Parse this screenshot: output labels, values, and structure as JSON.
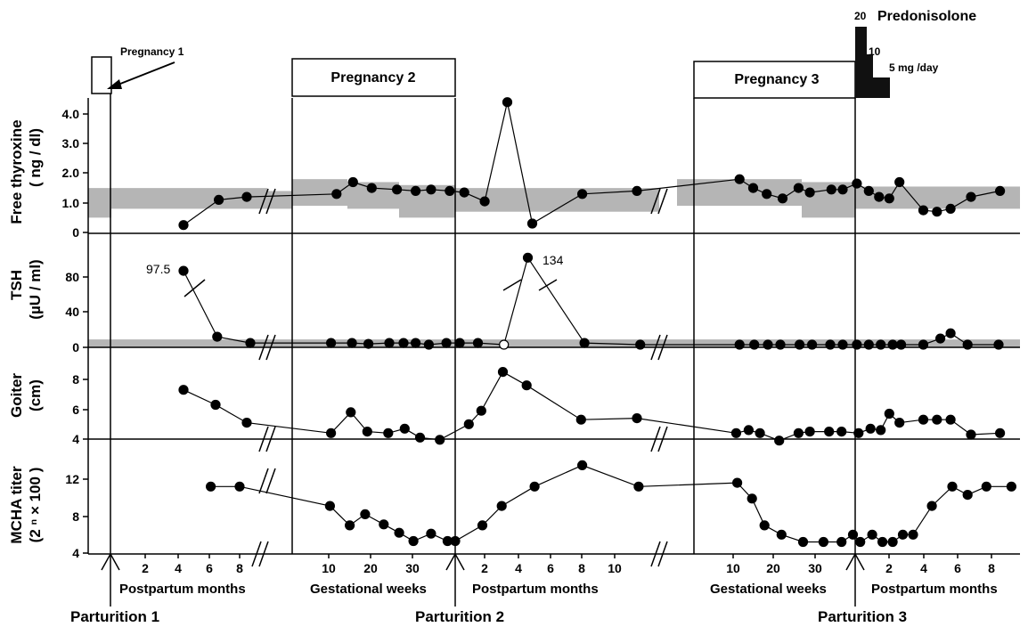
{
  "chart_data": {
    "type": "line",
    "x_axis_sections": [
      {
        "label": "Postpartum months",
        "ticks": [
          "2",
          "4",
          "6",
          "8"
        ]
      },
      {
        "label": "Gestational weeks",
        "ticks": [
          "10",
          "20",
          "30"
        ]
      },
      {
        "label": "Postpartum months",
        "ticks": [
          "2",
          "4",
          "6",
          "8",
          "10"
        ]
      },
      {
        "label": "Gestational weeks",
        "ticks": [
          "10",
          "20",
          "30"
        ]
      },
      {
        "label": "Postpartum months",
        "ticks": [
          "2",
          "4",
          "6",
          "8"
        ]
      }
    ],
    "events": [
      "Parturition 1",
      "Parturition 2",
      "Parturition 3"
    ],
    "pregnancies": [
      "Pregnancy 1",
      "Pregnancy 2",
      "Pregnancy 3"
    ],
    "treatment": {
      "name": "Predonisolone",
      "doses": [
        "20",
        "10",
        "5 mg /day"
      ]
    },
    "panels": [
      {
        "ylabel": [
          "Free thyroxine",
          "( ng / dl)"
        ],
        "ticks": [
          "0",
          "1.0",
          "2.0",
          "3.0",
          "4.0"
        ],
        "ylim": [
          0,
          4.2
        ],
        "normal_range": true,
        "points": [
          [
            4.5,
            0.25
          ],
          [
            6.7,
            1.1
          ],
          [
            8.2,
            1.2
          ],
          [
            13.2,
            1.3
          ],
          [
            14.7,
            1.7
          ],
          [
            16.4,
            1.5
          ],
          [
            18.7,
            1.45
          ],
          [
            20.4,
            1.4
          ],
          [
            21.8,
            1.45
          ],
          [
            23.5,
            1.4
          ],
          [
            24.8,
            1.35
          ],
          [
            26.6,
            1.05
          ],
          [
            28.6,
            4.4
          ],
          [
            30.8,
            0.3
          ],
          [
            35.2,
            1.3
          ],
          [
            40.0,
            1.4
          ],
          [
            45.8,
            1.8
          ],
          [
            47.0,
            1.5
          ],
          [
            48.2,
            1.3
          ],
          [
            49.6,
            1.15
          ],
          [
            51.0,
            1.5
          ],
          [
            52.0,
            1.35
          ],
          [
            53.9,
            1.45
          ],
          [
            54.9,
            1.45
          ],
          [
            56.1,
            1.65
          ],
          [
            56.8,
            1.4
          ],
          [
            57.4,
            1.2
          ],
          [
            58.0,
            1.15
          ],
          [
            58.6,
            1.7
          ],
          [
            60.0,
            0.75
          ],
          [
            60.8,
            0.7
          ],
          [
            61.6,
            0.8
          ],
          [
            62.8,
            1.2
          ],
          [
            64.6,
            1.4
          ]
        ]
      },
      {
        "ylabel": [
          "TSH",
          "(µU / ml)"
        ],
        "ticks": [
          "0",
          "40",
          "80"
        ],
        "ylim": [
          0,
          110
        ],
        "normal_range": true,
        "annotations": [
          "97.5",
          "134"
        ],
        "points": [
          [
            4.5,
            87
          ],
          [
            6.6,
            12
          ],
          [
            8.3,
            5
          ],
          [
            12.7,
            5
          ],
          [
            14.6,
            5
          ],
          [
            16.1,
            4
          ],
          [
            18.0,
            5
          ],
          [
            19.3,
            5
          ],
          [
            20.4,
            5
          ],
          [
            21.6,
            3
          ],
          [
            23.2,
            5
          ],
          [
            24.4,
            5
          ],
          [
            26.0,
            5
          ],
          [
            28.3,
            3
          ],
          [
            30.4,
            102
          ],
          [
            35.4,
            5
          ],
          [
            40.2,
            3
          ],
          [
            45.8,
            3
          ],
          [
            47.1,
            3
          ],
          [
            48.3,
            3
          ],
          [
            49.4,
            3
          ],
          [
            51.1,
            3
          ],
          [
            52.2,
            3
          ],
          [
            53.8,
            3
          ],
          [
            54.9,
            3
          ],
          [
            56.1,
            3
          ],
          [
            56.8,
            3
          ],
          [
            57.5,
            3
          ],
          [
            58.2,
            3
          ],
          [
            58.7,
            3
          ],
          [
            60.0,
            3
          ],
          [
            61.0,
            10
          ],
          [
            61.6,
            16
          ],
          [
            62.6,
            3
          ],
          [
            64.5,
            3
          ]
        ],
        "open_points": [
          [
            28.3,
            3
          ]
        ]
      },
      {
        "ylabel": [
          "Goiter",
          "(cm)"
        ],
        "ticks": [
          "4",
          "6",
          "8"
        ],
        "ylim": [
          4,
          9.2
        ],
        "points": [
          [
            4.5,
            7.3
          ],
          [
            6.5,
            6.3
          ],
          [
            8.2,
            5.1
          ],
          [
            12.7,
            4.4
          ],
          [
            14.5,
            5.8
          ],
          [
            16.0,
            4.5
          ],
          [
            17.9,
            4.4
          ],
          [
            19.4,
            4.7
          ],
          [
            20.8,
            4.1
          ],
          [
            22.6,
            3.95
          ],
          [
            25.2,
            5.0
          ],
          [
            26.3,
            5.9
          ],
          [
            28.2,
            8.5
          ],
          [
            30.3,
            7.6
          ],
          [
            35.1,
            5.3
          ],
          [
            40.0,
            5.4
          ],
          [
            45.5,
            4.4
          ],
          [
            46.6,
            4.6
          ],
          [
            47.6,
            4.4
          ],
          [
            49.3,
            3.9
          ],
          [
            51.0,
            4.4
          ],
          [
            52.0,
            4.5
          ],
          [
            53.7,
            4.5
          ],
          [
            54.8,
            4.5
          ],
          [
            56.2,
            4.4
          ],
          [
            56.9,
            4.7
          ],
          [
            57.5,
            4.6
          ],
          [
            58.0,
            5.7
          ],
          [
            58.6,
            5.1
          ],
          [
            60.0,
            5.3
          ],
          [
            60.8,
            5.3
          ],
          [
            61.6,
            5.3
          ],
          [
            62.8,
            4.3
          ],
          [
            64.6,
            4.4
          ]
        ]
      },
      {
        "ylabel": [
          "MCHA titer",
          "(2 ⁿ × 100 )"
        ],
        "ticks": [
          "4",
          "8",
          "12"
        ],
        "ylim": [
          4,
          14.4
        ],
        "points": [
          [
            6.2,
            11.2
          ],
          [
            8.0,
            11.2
          ],
          [
            12.6,
            9.1
          ],
          [
            14.4,
            7.0
          ],
          [
            15.8,
            8.2
          ],
          [
            17.5,
            7.1
          ],
          [
            18.9,
            6.2
          ],
          [
            20.2,
            5.3
          ],
          [
            21.8,
            6.1
          ],
          [
            23.3,
            5.3
          ],
          [
            24.0,
            5.3
          ],
          [
            26.4,
            7.0
          ],
          [
            28.1,
            9.1
          ],
          [
            31.0,
            11.2
          ],
          [
            35.2,
            13.5
          ],
          [
            40.1,
            11.2
          ],
          [
            45.6,
            11.6
          ],
          [
            46.9,
            9.9
          ],
          [
            48.0,
            7.0
          ],
          [
            49.5,
            6.0
          ],
          [
            51.4,
            5.2
          ],
          [
            53.2,
            5.2
          ],
          [
            54.8,
            5.2
          ],
          [
            55.8,
            6.0
          ],
          [
            56.3,
            5.2
          ],
          [
            57.0,
            6.0
          ],
          [
            57.6,
            5.2
          ],
          [
            58.2,
            5.2
          ],
          [
            58.8,
            6.0
          ],
          [
            59.4,
            6.0
          ],
          [
            60.5,
            9.1
          ],
          [
            61.7,
            11.2
          ],
          [
            62.6,
            10.3
          ],
          [
            63.7,
            11.2
          ],
          [
            65.4,
            11.2
          ]
        ]
      }
    ]
  }
}
